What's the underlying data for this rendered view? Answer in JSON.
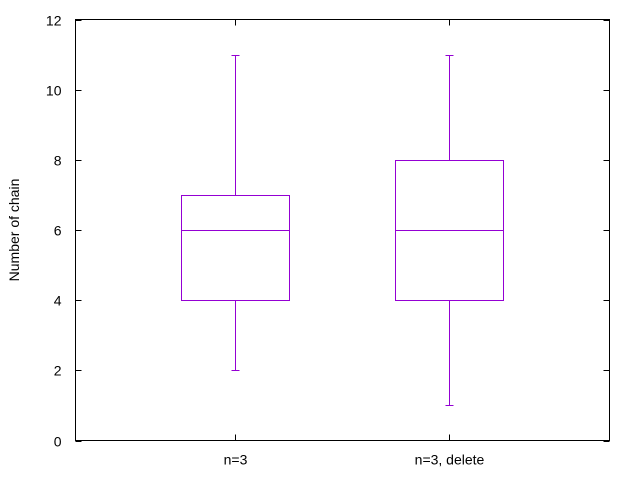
{
  "chart_data": {
    "type": "boxplot",
    "title": "",
    "xlabel": "",
    "ylabel": "Number of chain",
    "categories": [
      "n=3",
      "n=3, delete"
    ],
    "boxes": [
      {
        "category": "n=3",
        "min": 2,
        "q1": 4,
        "median": 6,
        "q3": 7,
        "max": 11
      },
      {
        "category": "n=3, delete",
        "min": 1,
        "q1": 4,
        "median": 6,
        "q3": 8,
        "max": 11
      }
    ],
    "ylim": [
      0,
      12
    ],
    "yticks": [
      0,
      2,
      4,
      6,
      8,
      10,
      12
    ],
    "grid": false,
    "legend": "none",
    "colors": {
      "box": "#9400d3",
      "axis": "#000000"
    }
  }
}
